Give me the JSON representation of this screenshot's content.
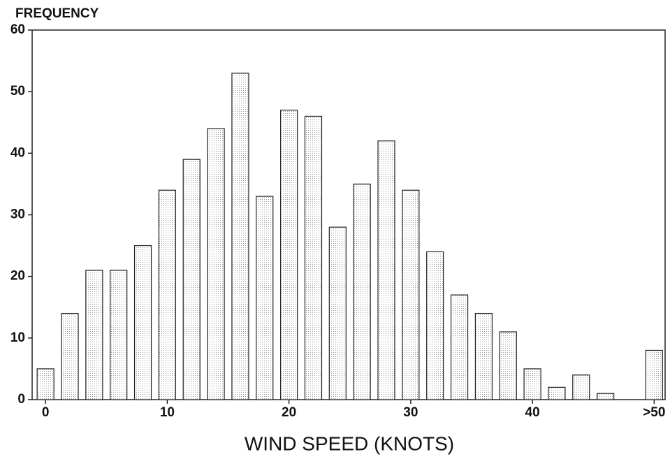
{
  "chart_data": {
    "type": "bar",
    "title": "FREQUENCY",
    "x_label": "WIND SPEED (KNOTS)",
    "x": [
      0,
      2,
      4,
      6,
      8,
      10,
      12,
      14,
      16,
      18,
      20,
      22,
      24,
      26,
      28,
      30,
      32,
      34,
      36,
      38,
      40,
      42,
      44,
      46,
      48,
      50
    ],
    "values": [
      5,
      14,
      21,
      21,
      25,
      34,
      39,
      44,
      53,
      33,
      47,
      46,
      28,
      35,
      42,
      34,
      24,
      17,
      14,
      11,
      5,
      2,
      4,
      1,
      0,
      8
    ],
    "color": "#e4e4e4",
    "xlim": [
      -1.1,
      50.9
    ],
    "xticks": [
      0,
      10,
      20,
      30,
      40,
      {
        "value": 50,
        "label": ">50"
      }
    ],
    "ylim": [
      0,
      60
    ],
    "yticks": [
      0,
      10,
      20,
      30,
      40,
      50,
      60
    ],
    "grid": false
  }
}
